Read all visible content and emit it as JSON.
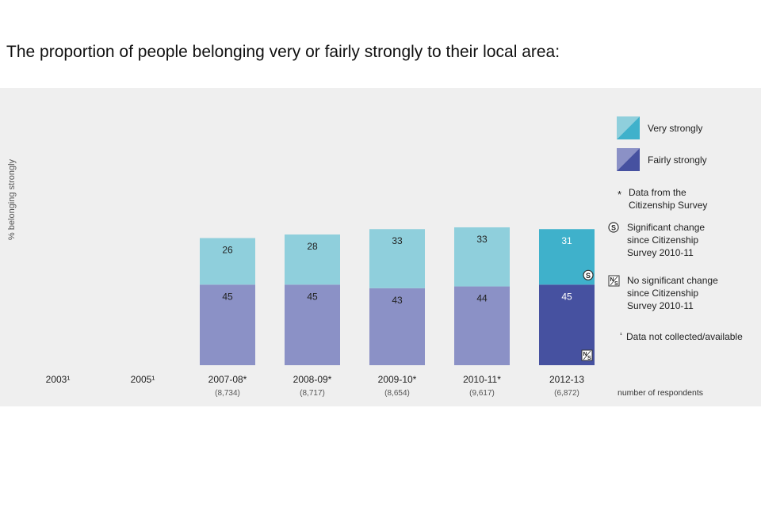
{
  "heading": "The proportion of people belonging very or fairly strongly to their local area:",
  "chart_data": {
    "type": "bar",
    "stacked": true,
    "title": "The proportion of people belonging very or fairly strongly to their local area:",
    "ylabel": "% belonging strongly",
    "xlabel": "",
    "ylim": [
      0,
      100
    ],
    "grid": false,
    "categories": [
      "2003¹",
      "2005¹",
      "2007-08*",
      "2008-09*",
      "2009-10*",
      "2010-11*",
      "2012-13"
    ],
    "respondents": [
      "",
      "",
      "(8,734)",
      "(8,717)",
      "(8,654)",
      "(9,617)",
      "(6,872)"
    ],
    "respondents_label": "number of respondents",
    "series": [
      {
        "name": "Fairly strongly",
        "values": [
          null,
          null,
          45,
          45,
          43,
          44,
          45
        ],
        "color": "#8b91c6",
        "highlight_color": "#4651a0"
      },
      {
        "name": "Very strongly",
        "values": [
          null,
          null,
          26,
          28,
          33,
          33,
          31
        ],
        "color": "#8fcfdc",
        "highlight_color": "#3fb1cb"
      }
    ],
    "highlight_category": "2012-13",
    "markers": [
      {
        "category": "2012-13",
        "series": "Very strongly",
        "symbol": "S"
      },
      {
        "category": "2012-13",
        "series": "Fairly strongly",
        "symbol": "NS"
      }
    ],
    "legend_position": "right",
    "legend": {
      "very": "Very strongly",
      "fairly": "Fairly strongly",
      "notes": [
        {
          "symbol": "*",
          "lines": [
            "Data from the",
            "Citizenship Survey"
          ]
        },
        {
          "symbol": "S",
          "lines": [
            "Significant change",
            "since Citizenship",
            "Survey 2010-11"
          ]
        },
        {
          "symbol": "NS",
          "lines": [
            "No significant change",
            "since Citizenship",
            "Survey 2010-11"
          ]
        },
        {
          "symbol": "¹",
          "lines": [
            "Data not collected/available"
          ]
        }
      ]
    }
  }
}
